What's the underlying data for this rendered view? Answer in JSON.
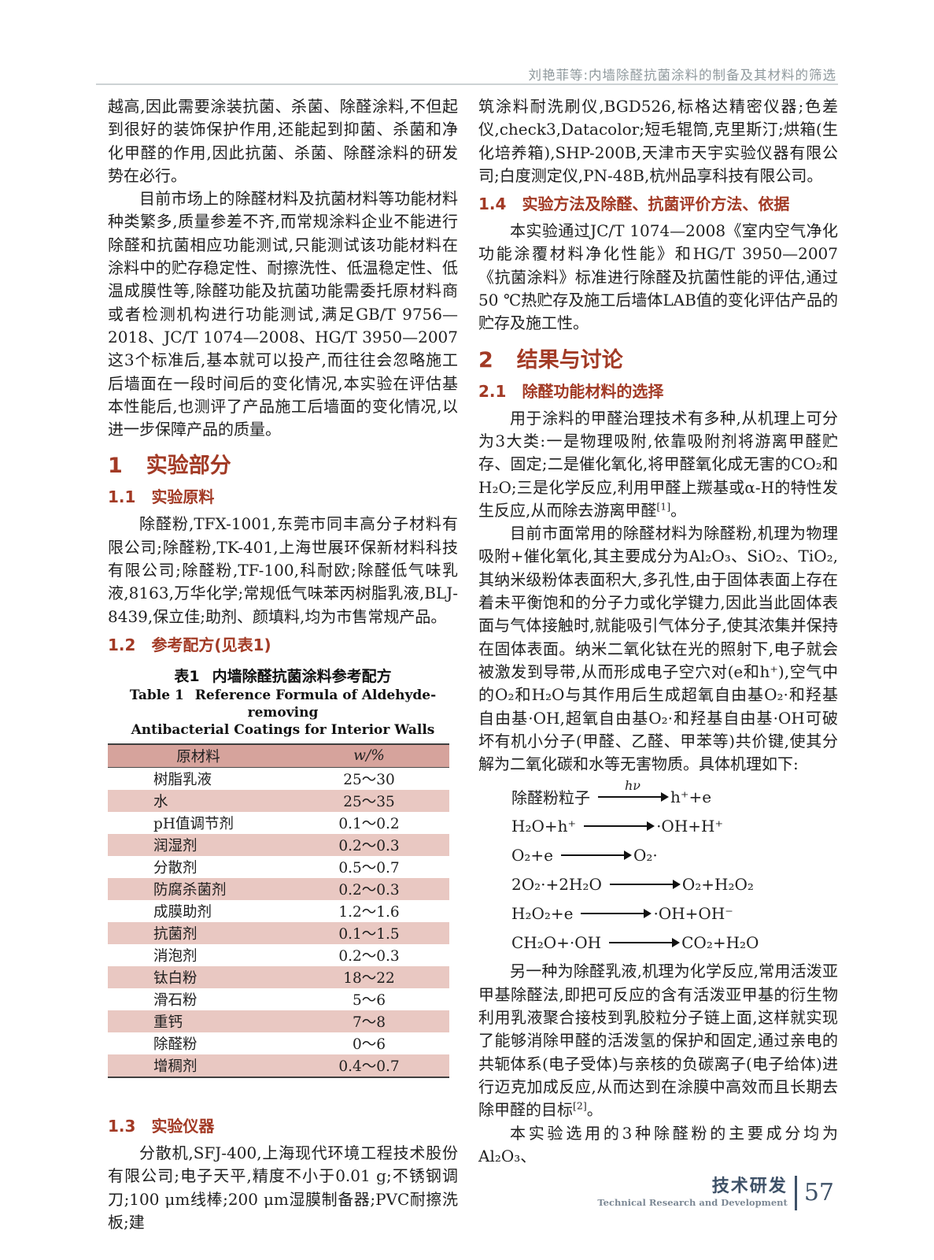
{
  "header": {
    "text": "刘艳菲等:内墙除醛抗菌涂料的制备及其材料的筛选"
  },
  "footer": {
    "cn": "技术研发",
    "en": "Technical Research and Development",
    "page_no": "57"
  },
  "colors": {
    "heading_red": "#a23a25",
    "table_header_bg": "#d6a39c",
    "table_alt_row_bg": "#e9c8c2",
    "footer_blue": "#3e5167"
  },
  "left": {
    "p1": "越高,因此需要涂装抗菌、杀菌、除醛涂料,不但起到很好的装饰保护作用,还能起到抑菌、杀菌和净化甲醛的作用,因此抗菌、杀菌、除醛涂料的研发势在必行。",
    "p2": "目前市场上的除醛材料及抗菌材料等功能材料种类繁多,质量参差不齐,而常规涂料企业不能进行除醛和抗菌相应功能测试,只能测试该功能材料在涂料中的贮存稳定性、耐擦洗性、低温稳定性、低温成膜性等,除醛功能及抗菌功能需委托原材料商或者检测机构进行功能测试,满足GB/T 9756—2018、JC/T 1074—2008、HG/T 3950—2007这3个标准后,基本就可以投产,而往往会忽略施工后墙面在一段时间后的变化情况,本实验在评估基本性能后,也测评了产品施工后墙面的变化情况,以进一步保障产品的质量。",
    "h1": {
      "num": "1",
      "title": "实验部分"
    },
    "h11": {
      "num": "1.1",
      "title": "实验原料"
    },
    "p3": "除醛粉,TFX-1001,东莞市同丰高分子材料有限公司;除醛粉,TK-401,上海世展环保新材料科技有限公司;除醛粉,TF-100,科耐欧;除醛低气味乳液,8163,万华化学;常规低气味苯丙树脂乳液,BLJ-8439,保立佳;助剂、颜填料,均为市售常规产品。",
    "h12": {
      "num": "1.2",
      "title": "参考配方(见表1)"
    },
    "table": {
      "caption_cn": {
        "label": "表1",
        "title": "内墙除醛抗菌涂料参考配方"
      },
      "caption_en": {
        "label": "Table 1",
        "line1": "Reference Formula of Aldehyde-removing",
        "line2": "Antibacterial Coatings for Interior Walls"
      },
      "headers": [
        "原材料",
        "w/%"
      ],
      "rows": [
        [
          "树脂乳液",
          "25～30"
        ],
        [
          "水",
          "25～35"
        ],
        [
          "pH值调节剂",
          "0.1～0.2"
        ],
        [
          "润湿剂",
          "0.2～0.3"
        ],
        [
          "分散剂",
          "0.5～0.7"
        ],
        [
          "防腐杀菌剂",
          "0.2～0.3"
        ],
        [
          "成膜助剂",
          "1.2～1.6"
        ],
        [
          "抗菌剂",
          "0.1～1.5"
        ],
        [
          "消泡剂",
          "0.2～0.3"
        ],
        [
          "钛白粉",
          "18～22"
        ],
        [
          "滑石粉",
          "5～6"
        ],
        [
          "重钙",
          "7～8"
        ],
        [
          "除醛粉",
          "0～6"
        ],
        [
          "增稠剂",
          "0.4～0.7"
        ]
      ]
    },
    "h13": {
      "num": "1.3",
      "title": "实验仪器"
    },
    "p4": "分散机,SFJ-400,上海现代环境工程技术股份有限公司;电子天平,精度不小于0.01 g;不锈钢调刀;100 μm线棒;200 μm湿膜制备器;PVC耐擦洗板;建"
  },
  "right": {
    "p1": "筑涂料耐洗刷仪,BGD526,标格达精密仪器;色差仪,check3,Datacolor;短毛辊筒,克里斯汀;烘箱(生化培养箱),SHP-200B,天津市天宇实验仪器有限公司;白度测定仪,PN-48B,杭州品享科技有限公司。",
    "h14": {
      "num": "1.4",
      "title": "实验方法及除醛、抗菌评价方法、依据"
    },
    "p2": "本实验通过JC/T 1074—2008《室内空气净化功能涂覆材料净化性能》和HG/T 3950—2007《抗菌涂料》标准进行除醛及抗菌性能的评估,通过50 ℃热贮存及施工后墙体LAB值的变化评估产品的贮存及施工性。",
    "h2": {
      "num": "2",
      "title": "结果与讨论"
    },
    "h21": {
      "num": "2.1",
      "title": "除醛功能材料的选择"
    },
    "p3a": "用于涂料的甲醛治理技术有多种,从机理上可分为3大类:一是物理吸附,依靠吸附剂将游离甲醛贮存、固定;二是催化氧化,将甲醛氧化成无害的CO₂和H₂O;三是化学反应,利用甲醛上羰基或α-H的特性发生反应,从而除去游离甲醛",
    "p3ref": "[1]",
    "p3b": "。",
    "p4": "目前市面常用的除醛材料为除醛粉,机理为物理吸附+催化氧化,其主要成分为Al₂O₃、SiO₂、TiO₂,其纳米级粉体表面积大,多孔性,由于固体表面上存在着未平衡饱和的分子力或化学键力,因此当此固体表面与气体接触时,就能吸引气体分子,使其浓集并保持在固体表面。纳米二氧化钛在光的照射下,电子就会被激发到导带,从而形成电子空穴对(e和h⁺),空气中的O₂和H₂O与其作用后生成超氧自由基O₂·和羟基自由基·OH,超氧自由基O₂·和羟基自由基·OH可破坏有机小分子(甲醛、乙醛、甲苯等)共价键,使其分解为二氧化碳和水等无害物质。具体机理如下:",
    "equations": [
      {
        "lhs": "除醛粉粒子",
        "above": "hν",
        "rhs": "h⁺+e"
      },
      {
        "lhs": "H₂O+h⁺",
        "rhs": "·OH+H⁺"
      },
      {
        "lhs": "O₂+e",
        "rhs": "O₂·"
      },
      {
        "lhs": "2O₂·+2H₂O",
        "rhs": "O₂+H₂O₂"
      },
      {
        "lhs": "H₂O₂+e",
        "rhs": "·OH+OH⁻"
      },
      {
        "lhs": "CH₂O+·OH",
        "rhs": "CO₂+H₂O"
      }
    ],
    "p5a": "另一种为除醛乳液,机理为化学反应,常用活泼亚甲基除醛法,即把可反应的含有活泼亚甲基的衍生物利用乳液聚合接枝到乳胶粒分子链上面,这样就实现了能够消除甲醛的活泼氢的保护和固定,通过亲电的共轭体系(电子受体)与亲核的负碳离子(电子给体)进行迈克加成反应,从而达到在涂膜中高效而且长期去除甲醛的目标",
    "p5ref": "[2]",
    "p5b": "。",
    "p6": "本实验选用的3种除醛粉的主要成分均为Al₂O₃、"
  }
}
